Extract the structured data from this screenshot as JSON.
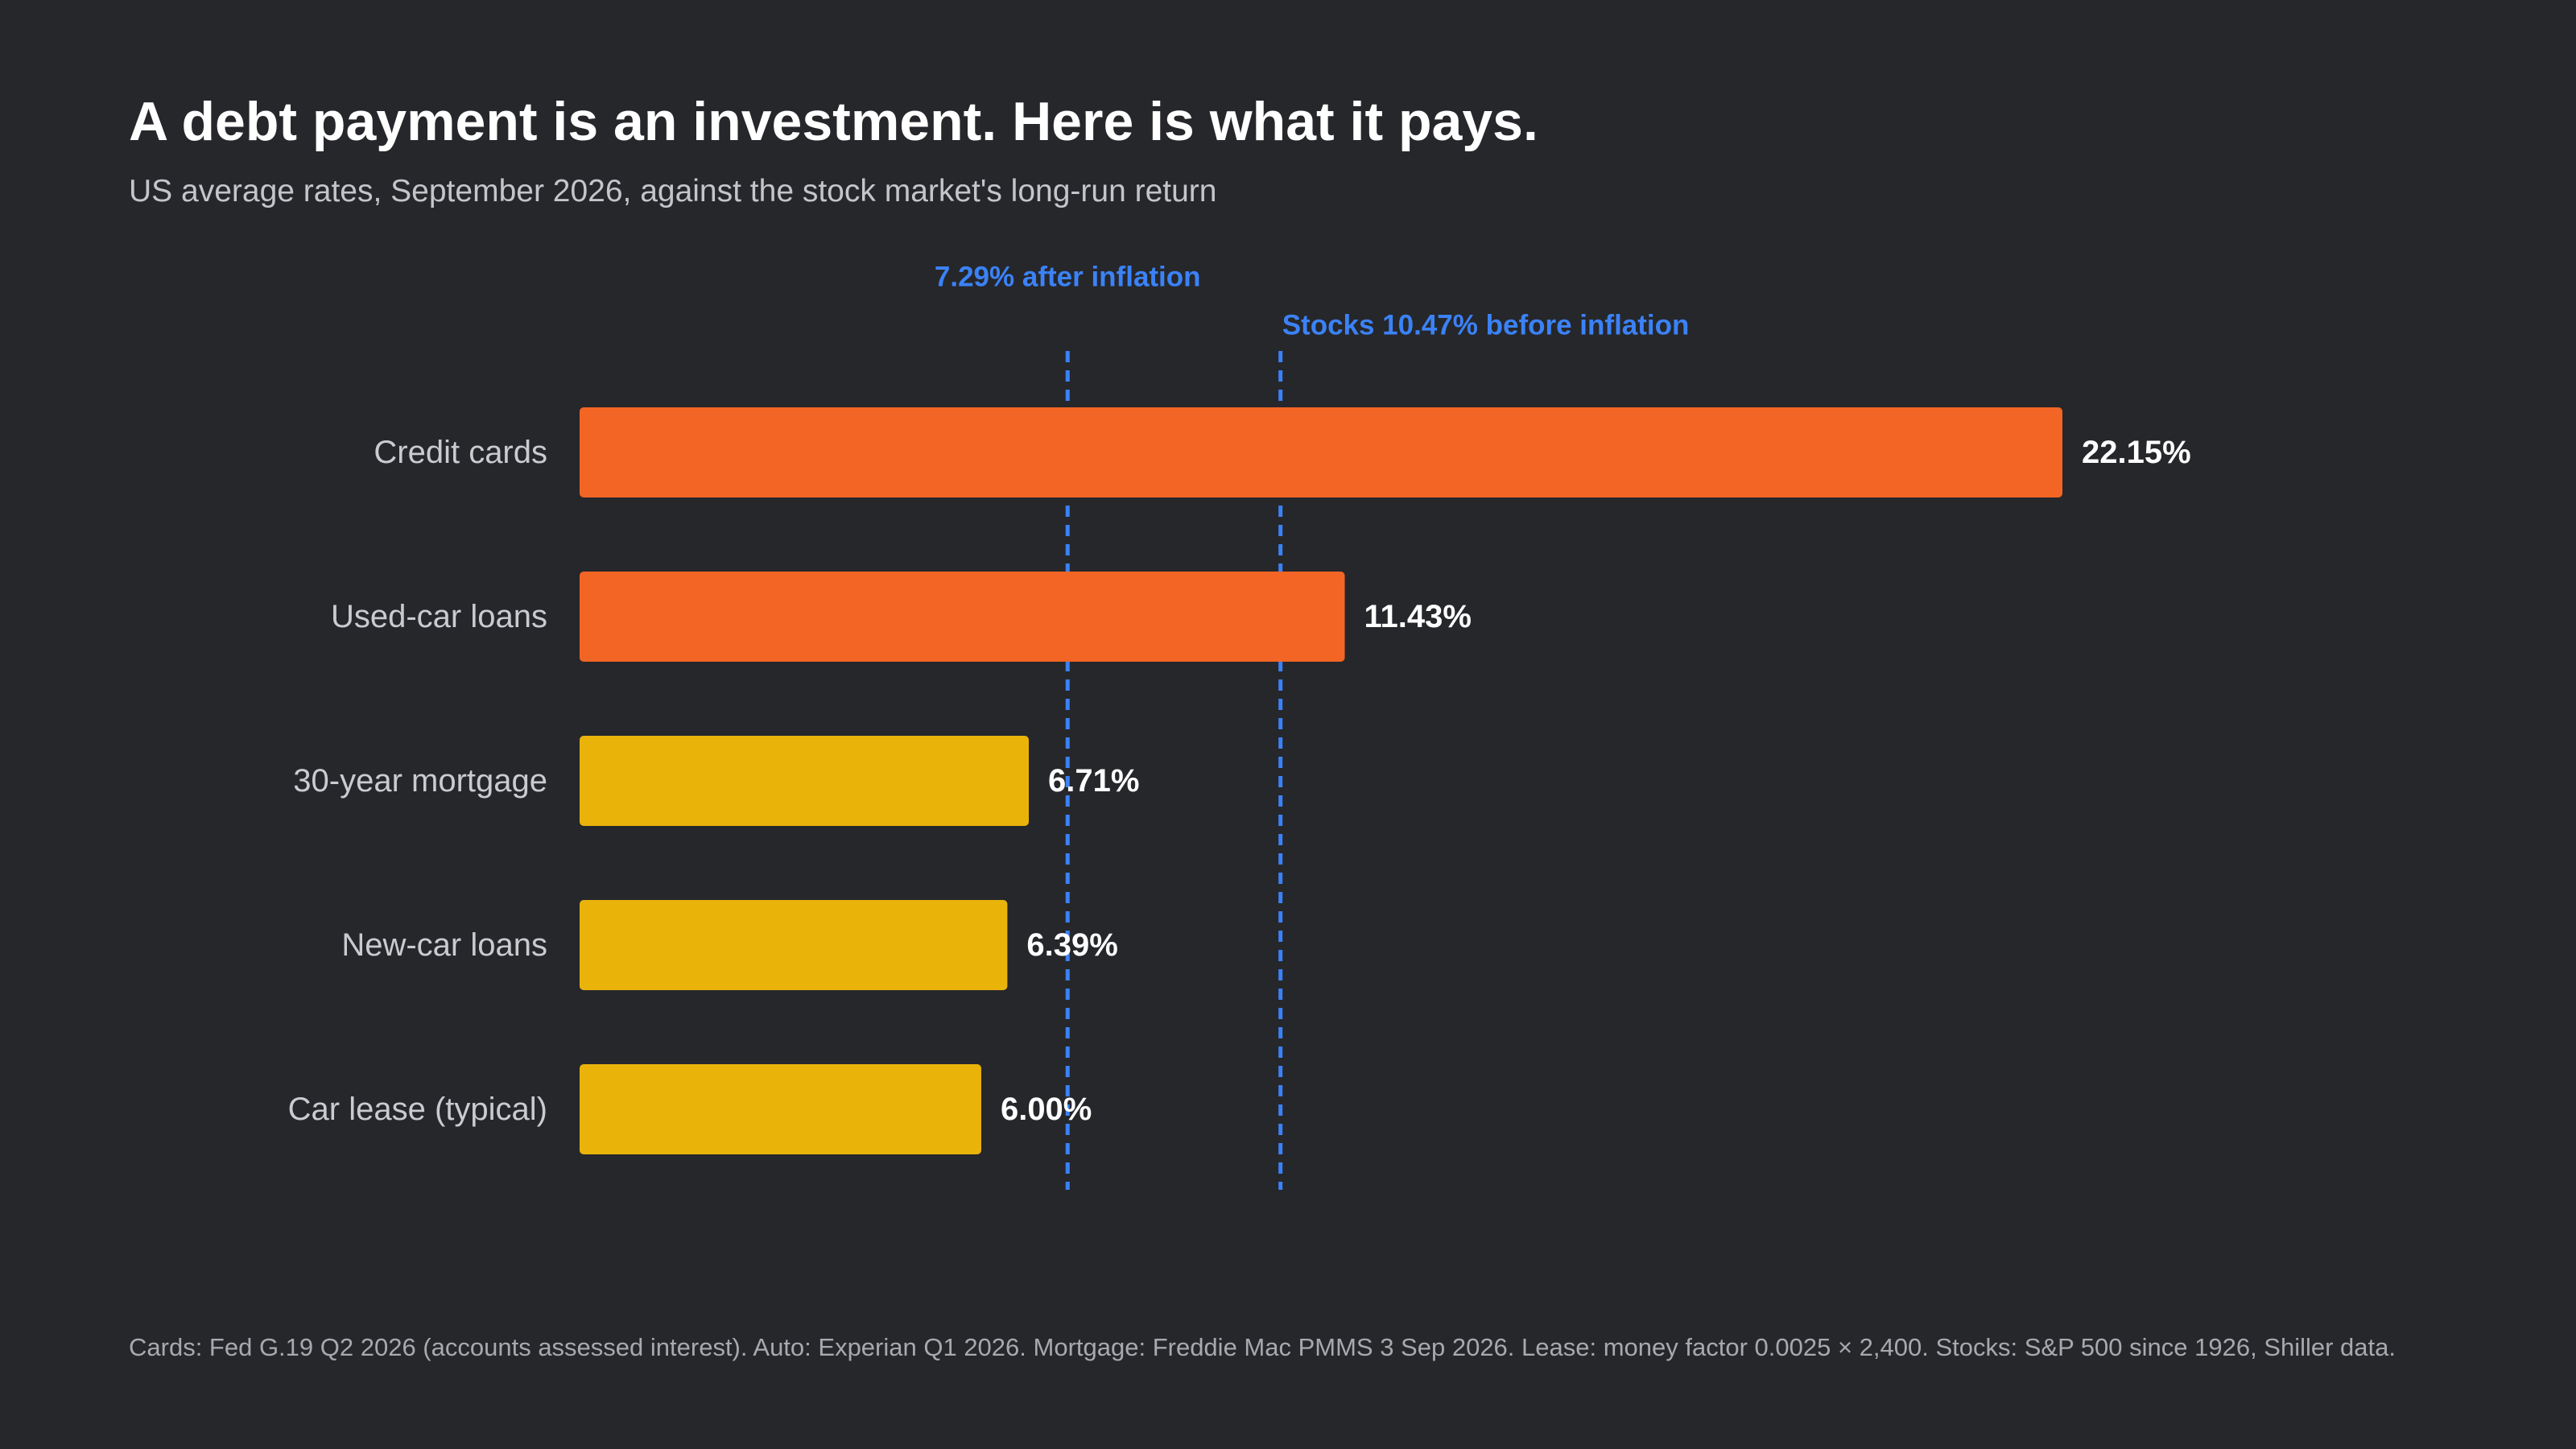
{
  "header": {
    "title": "A debt payment is an investment. Here is what it pays.",
    "subtitle": "US average rates, September 2026, against the stock market's long-run return"
  },
  "footer": {
    "source": "Cards: Fed G.19 Q2 2026 (accounts assessed interest). Auto: Experian Q1 2026. Mortgage: Freddie Mac PMMS 3 Sep 2026. Lease: money factor 0.0025 × 2,400. Stocks: S&P 500 since 1926, Shiller data."
  },
  "colors": {
    "background": "#26272b",
    "above_stocks": "#f26524",
    "below_stocks": "#e9b30a",
    "reference": "#3b82f6"
  },
  "chart_data": {
    "type": "bar",
    "orientation": "horizontal",
    "categories": [
      "Credit cards",
      "Used-car loans",
      "30-year mortgage",
      "New-car loans",
      "Car lease (typical)"
    ],
    "values": [
      22.15,
      11.43,
      6.71,
      6.39,
      6.0
    ],
    "value_labels": [
      "22.15%",
      "11.43%",
      "6.71%",
      "6.39%",
      "6.00%"
    ],
    "unit": "%",
    "xlim": [
      0,
      22.15
    ],
    "grid": false,
    "axes_visible": false,
    "reference_lines": [
      {
        "value": 7.29,
        "label": "7.29% after inflation"
      },
      {
        "value": 10.47,
        "label": "Stocks 10.47% before inflation"
      }
    ]
  }
}
